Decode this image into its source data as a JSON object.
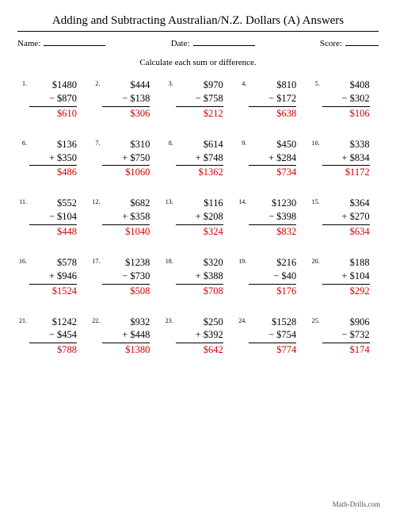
{
  "title": "Adding and Subtracting Australian/N.Z. Dollars (A) Answers",
  "meta": {
    "name_label": "Name:",
    "date_label": "Date:",
    "score_label": "Score:",
    "name_line_w": 78,
    "date_line_w": 78,
    "score_line_w": 42
  },
  "instruction": "Calculate each sum or difference.",
  "footer": "Math-Drills.com",
  "colors": {
    "answer": "#d00000",
    "text": "#000000",
    "bg": "#ffffff"
  },
  "font": {
    "family": "Times New Roman",
    "title_size": 15,
    "body_size": 12.5,
    "num_size": 8
  },
  "problems": [
    {
      "n": "1.",
      "a": "$1480",
      "op": "−",
      "b": "$870",
      "ans": "$610"
    },
    {
      "n": "2.",
      "a": "$444",
      "op": "−",
      "b": "$138",
      "ans": "$306"
    },
    {
      "n": "3.",
      "a": "$970",
      "op": "−",
      "b": "$758",
      "ans": "$212"
    },
    {
      "n": "4.",
      "a": "$810",
      "op": "−",
      "b": "$172",
      "ans": "$638"
    },
    {
      "n": "5.",
      "a": "$408",
      "op": "−",
      "b": "$302",
      "ans": "$106"
    },
    {
      "n": "6.",
      "a": "$136",
      "op": "+",
      "b": "$350",
      "ans": "$486"
    },
    {
      "n": "7.",
      "a": "$310",
      "op": "+",
      "b": "$750",
      "ans": "$1060"
    },
    {
      "n": "8.",
      "a": "$614",
      "op": "+",
      "b": "$748",
      "ans": "$1362"
    },
    {
      "n": "9.",
      "a": "$450",
      "op": "+",
      "b": "$284",
      "ans": "$734"
    },
    {
      "n": "10.",
      "a": "$338",
      "op": "+",
      "b": "$834",
      "ans": "$1172"
    },
    {
      "n": "11.",
      "a": "$552",
      "op": "−",
      "b": "$104",
      "ans": "$448"
    },
    {
      "n": "12.",
      "a": "$682",
      "op": "+",
      "b": "$358",
      "ans": "$1040"
    },
    {
      "n": "13.",
      "a": "$116",
      "op": "+",
      "b": "$208",
      "ans": "$324"
    },
    {
      "n": "14.",
      "a": "$1230",
      "op": "−",
      "b": "$398",
      "ans": "$832"
    },
    {
      "n": "15.",
      "a": "$364",
      "op": "+",
      "b": "$270",
      "ans": "$634"
    },
    {
      "n": "16.",
      "a": "$578",
      "op": "+",
      "b": "$946",
      "ans": "$1524"
    },
    {
      "n": "17.",
      "a": "$1238",
      "op": "−",
      "b": "$730",
      "ans": "$508"
    },
    {
      "n": "18.",
      "a": "$320",
      "op": "+",
      "b": "$388",
      "ans": "$708"
    },
    {
      "n": "19.",
      "a": "$216",
      "op": "−",
      "b": "$40",
      "ans": "$176"
    },
    {
      "n": "20.",
      "a": "$188",
      "op": "+",
      "b": "$104",
      "ans": "$292"
    },
    {
      "n": "21.",
      "a": "$1242",
      "op": "−",
      "b": "$454",
      "ans": "$788"
    },
    {
      "n": "22.",
      "a": "$932",
      "op": "+",
      "b": "$448",
      "ans": "$1380"
    },
    {
      "n": "23.",
      "a": "$250",
      "op": "+",
      "b": "$392",
      "ans": "$642"
    },
    {
      "n": "24.",
      "a": "$1528",
      "op": "−",
      "b": "$754",
      "ans": "$774"
    },
    {
      "n": "25.",
      "a": "$906",
      "op": "−",
      "b": "$732",
      "ans": "$174"
    }
  ]
}
